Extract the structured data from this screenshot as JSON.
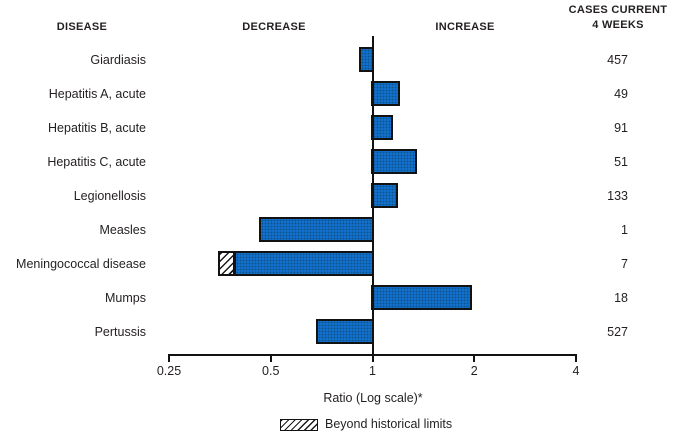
{
  "header": {
    "disease": "DISEASE",
    "decrease": "DECREASE",
    "increase": "INCREASE",
    "cases_line1": "CASES CURRENT",
    "cases_line2": "4 WEEKS"
  },
  "chart_data": {
    "type": "bar",
    "orientation": "horizontal",
    "scale": "log2",
    "baseline": 1,
    "xlabel": "Ratio (Log scale)*",
    "xlim": [
      0.25,
      4
    ],
    "x_ticks": [
      0.25,
      0.5,
      1,
      2,
      4
    ],
    "x_tick_labels": [
      "0.25",
      "0.5",
      "1",
      "2",
      "4"
    ],
    "legend_label": "Beyond historical limits",
    "legend_style": "hatched",
    "rows": [
      {
        "disease": "Giardiasis",
        "ratio": 0.91,
        "cases_current_4_weeks": 457
      },
      {
        "disease": "Hepatitis A, acute",
        "ratio": 1.21,
        "cases_current_4_weeks": 49
      },
      {
        "disease": "Hepatitis B, acute",
        "ratio": 1.15,
        "cases_current_4_weeks": 91
      },
      {
        "disease": "Hepatitis C, acute",
        "ratio": 1.35,
        "cases_current_4_weeks": 51
      },
      {
        "disease": "Legionellosis",
        "ratio": 1.19,
        "cases_current_4_weeks": 133
      },
      {
        "disease": "Measles",
        "ratio": 0.46,
        "cases_current_4_weeks": 1
      },
      {
        "disease": "Meningococcal disease",
        "ratio": 0.35,
        "cases_current_4_weeks": 7,
        "beyond_historical_limits": true,
        "beyond_segment": [
          0.35,
          0.39
        ]
      },
      {
        "disease": "Mumps",
        "ratio": 1.97,
        "cases_current_4_weeks": 18
      },
      {
        "disease": "Pertussis",
        "ratio": 0.68,
        "cases_current_4_weeks": 527
      }
    ]
  },
  "colors": {
    "bar_fill": "#1270cc",
    "bar_border": "#121212",
    "hatch_foreground": "#1b1b1b",
    "text": "#231f20",
    "background": "#ffffff"
  }
}
